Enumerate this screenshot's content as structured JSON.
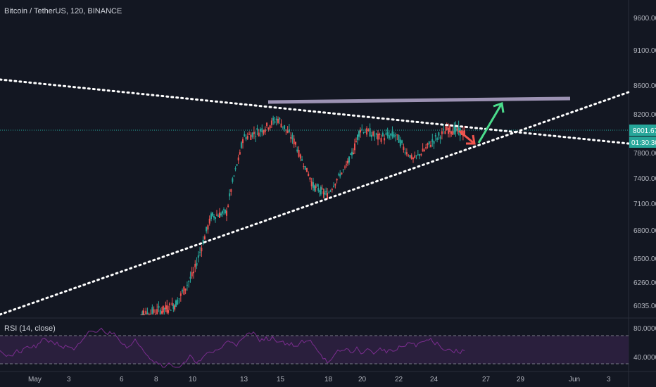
{
  "header": {
    "title": "Bitcoin / TetherUS, 120, BINANCE"
  },
  "rsi": {
    "title": "RSI (14, close)",
    "ticks": [
      "80.0000",
      "40.0000"
    ],
    "upper_band": 70,
    "lower_band": 30
  },
  "price_axis": {
    "ticks": [
      "9600.00",
      "9100.00",
      "8600.00",
      "8200.00",
      "7800.00",
      "7400.00",
      "7100.00",
      "6800.00",
      "6500.00",
      "6260.00",
      "6035.00"
    ],
    "last_price_label": "8001.67",
    "countdown_label": "01:30:30"
  },
  "time_axis": {
    "ticks": [
      "May",
      "3",
      "6",
      "8",
      "10",
      "13",
      "15",
      "18",
      "20",
      "22",
      "24",
      "27",
      "29",
      "Jun",
      "3"
    ]
  },
  "colors": {
    "background": "#131722",
    "up_candle": "#26a69a",
    "down_candle": "#ef5350",
    "trendline": "#ffffff",
    "resistance": "#9c92b3",
    "arrow_up": "#4bdc8c",
    "arrow_down": "#f2564e",
    "rsi_line": "#7b2d8f",
    "rsi_fill": "#2a1f3d",
    "last_price": "#26a69a"
  },
  "chart_data": {
    "type": "candlestick",
    "title": "",
    "series": [
      {
        "name": "Bitcoin / TetherUS",
        "x": [
          "May 7",
          "May 8",
          "May 9",
          "May 10",
          "May 11",
          "May 12",
          "May 13",
          "May 14",
          "May 15",
          "May 16",
          "May 17",
          "May 18",
          "May 19",
          "May 20",
          "May 21",
          "May 22",
          "May 23",
          "May 24",
          "May 25",
          "May 26"
        ],
        "close": [
          5950,
          5990,
          6050,
          6350,
          6950,
          7000,
          7950,
          8030,
          8150,
          7900,
          7300,
          7200,
          7550,
          8050,
          7960,
          7980,
          7700,
          7900,
          8050,
          8001.67
        ]
      }
    ],
    "annotations": [
      {
        "type": "resistance_line",
        "level": 8320
      },
      {
        "type": "descending_trendline"
      },
      {
        "type": "ascending_trendline"
      },
      {
        "type": "arrow",
        "direction": "down"
      },
      {
        "type": "arrow",
        "direction": "up"
      }
    ],
    "y_range": [
      5950,
      9700
    ],
    "rsi_range": [
      28,
      88
    ],
    "grid": false,
    "legend": "none"
  }
}
